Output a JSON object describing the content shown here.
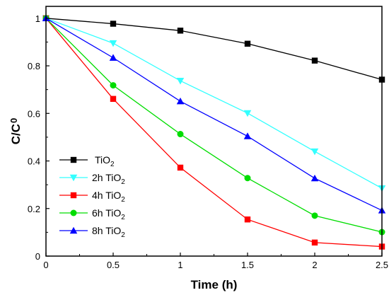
{
  "chart_data": {
    "type": "line",
    "xlabel": "Time (h)",
    "ylabel": {
      "main": "C/C",
      "sub": "0"
    },
    "xlim": [
      0,
      2.5
    ],
    "ylim": [
      0,
      1.05
    ],
    "xticks": [
      "0",
      "0.5",
      "1",
      "1.5",
      "2",
      "2.5"
    ],
    "yticks": [
      "0",
      "0.2",
      "0.4",
      "0.6",
      "0.8",
      "1"
    ],
    "x": [
      0,
      0.5,
      1,
      1.5,
      2,
      2.5
    ],
    "grid": false,
    "legend_position": "bottom-left",
    "series": [
      {
        "name": "TiO",
        "sub": "2",
        "color": "#000000",
        "marker": "square",
        "values": [
          1.0,
          0.977,
          0.948,
          0.893,
          0.822,
          0.742
        ]
      },
      {
        "name": "2h TiO",
        "sub": "2",
        "color": "#33ffff",
        "marker": "triangle-down",
        "values": [
          1.0,
          0.895,
          0.737,
          0.601,
          0.44,
          0.285
        ]
      },
      {
        "name": "4h TiO",
        "sub": "2",
        "color": "#ff0000",
        "marker": "square",
        "values": [
          1.0,
          0.661,
          0.372,
          0.154,
          0.057,
          0.04
        ]
      },
      {
        "name": "6h TiO",
        "sub": "2",
        "color": "#00dd00",
        "marker": "circle",
        "values": [
          1.0,
          0.718,
          0.513,
          0.328,
          0.17,
          0.101
        ]
      },
      {
        "name": "8h TiO",
        "sub": "2",
        "color": "#0000ff",
        "marker": "triangle-up",
        "values": [
          1.0,
          0.834,
          0.651,
          0.504,
          0.327,
          0.192
        ]
      }
    ]
  }
}
